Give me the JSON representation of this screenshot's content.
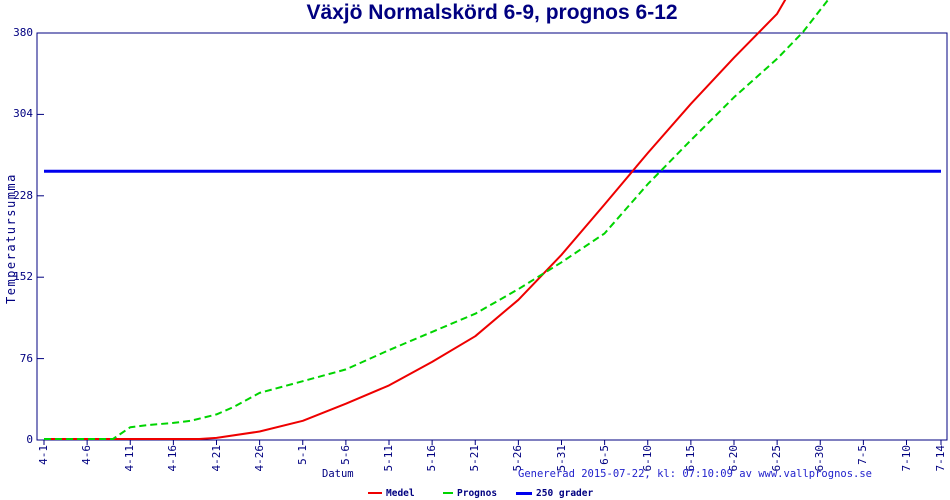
{
  "chart_data": {
    "type": "line",
    "title": "Växjö Normalskörd 6-9, prognos 6-12",
    "xlabel": "Datum",
    "ylabel": "Temperatursumma",
    "footer": "Genererad 2015-07-22, kl: 07:10:09 av www.vallprognos.se",
    "x_ticks": [
      "4-1",
      "4-6",
      "4-11",
      "4-16",
      "4-21",
      "4-26",
      "5-1",
      "5-6",
      "5-11",
      "5-16",
      "5-21",
      "5-26",
      "5-31",
      "6-5",
      "6-10",
      "6-15",
      "6-20",
      "6-25",
      "6-30",
      "7-5",
      "7-10",
      "7-14"
    ],
    "y_ticks": [
      0,
      76,
      152,
      228,
      304,
      380
    ],
    "ylim": [
      0,
      380
    ],
    "grid": false,
    "legend_position": "bottom",
    "colors": {
      "axis": "#000080",
      "footer": "#2222cc",
      "medel": "#ee0000",
      "prognos": "#00d400",
      "threshold": "#0000ee"
    },
    "series": [
      {
        "name": "Medel",
        "color": "#ee0000",
        "style": "solid",
        "points": [
          [
            "4-1",
            0
          ],
          [
            "4-6",
            0
          ],
          [
            "4-11",
            0
          ],
          [
            "4-16",
            0
          ],
          [
            "4-19",
            0
          ],
          [
            "4-21",
            1
          ],
          [
            "4-26",
            7
          ],
          [
            "5-1",
            17
          ],
          [
            "5-6",
            33
          ],
          [
            "5-11",
            50
          ],
          [
            "5-16",
            72
          ],
          [
            "5-21",
            96
          ],
          [
            "5-26",
            130
          ],
          [
            "5-31",
            172
          ],
          [
            "6-5",
            219
          ],
          [
            "6-10",
            267
          ],
          [
            "6-15",
            313
          ],
          [
            "6-20",
            356
          ],
          [
            "6-25",
            397
          ],
          [
            "6-26",
            411
          ]
        ]
      },
      {
        "name": "Prognos",
        "color": "#00d400",
        "style": "dashed",
        "points": [
          [
            "4-1",
            0
          ],
          [
            "4-6",
            0
          ],
          [
            "4-9",
            0
          ],
          [
            "4-11",
            11
          ],
          [
            "4-13",
            13
          ],
          [
            "4-16",
            15
          ],
          [
            "4-18",
            17
          ],
          [
            "4-21",
            23
          ],
          [
            "4-23",
            30
          ],
          [
            "4-26",
            43
          ],
          [
            "5-1",
            54
          ],
          [
            "5-6",
            65
          ],
          [
            "5-11",
            83
          ],
          [
            "5-16",
            100
          ],
          [
            "5-21",
            117
          ],
          [
            "5-26",
            140
          ],
          [
            "5-31",
            165
          ],
          [
            "6-5",
            192
          ],
          [
            "6-10",
            238
          ],
          [
            "6-15",
            279
          ],
          [
            "6-20",
            319
          ],
          [
            "6-25",
            355
          ],
          [
            "6-28",
            380
          ],
          [
            "7-1",
            411
          ]
        ]
      },
      {
        "name": "250 grader",
        "color": "#0000ee",
        "style": "solid",
        "threshold_value": 250,
        "points": [
          [
            "4-1",
            250
          ],
          [
            "7-14",
            250
          ]
        ]
      }
    ]
  }
}
